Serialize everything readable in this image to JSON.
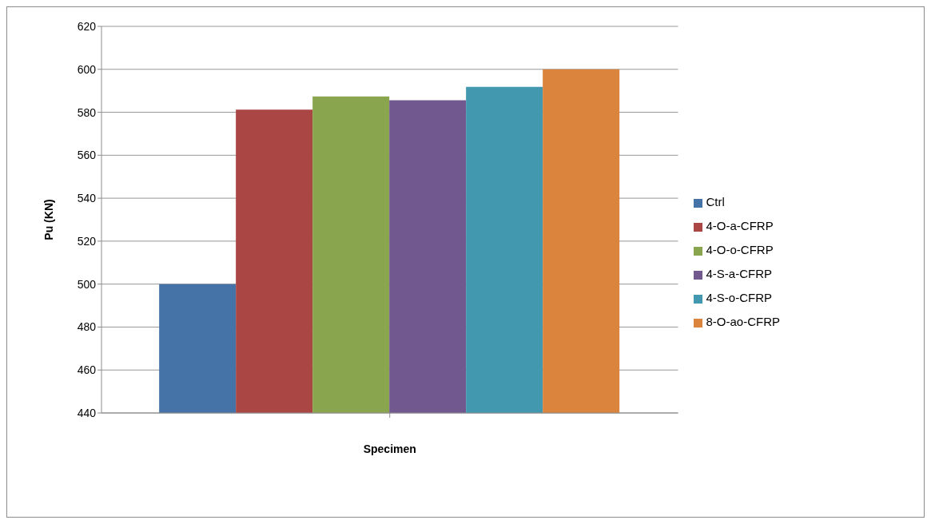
{
  "chart_data": {
    "type": "bar",
    "xlabel": "Specimen",
    "ylabel": "Pu (KN)",
    "categories": [
      null
    ],
    "series": [
      {
        "name": "Ctrl",
        "color": "#4572a7",
        "values": [
          500
        ]
      },
      {
        "name": "4-O-a-CFRP",
        "color": "#aa4643",
        "values": [
          581.2
        ]
      },
      {
        "name": "4-O-o-CFRP",
        "color": "#89a54e",
        "values": [
          587.4
        ]
      },
      {
        "name": "4-S-a-CFRP",
        "color": "#71588f",
        "values": [
          585.6
        ]
      },
      {
        "name": "4-S-o-CFRP",
        "color": "#4198af",
        "values": [
          591.8
        ]
      },
      {
        "name": "8-O-ao-CFRP",
        "color": "#db843d",
        "values": [
          600
        ]
      }
    ],
    "ylim": [
      440,
      620
    ],
    "yticks": [
      440,
      460,
      480,
      500,
      520,
      540,
      560,
      580,
      600,
      620
    ],
    "grid": "y",
    "legend": "right"
  }
}
